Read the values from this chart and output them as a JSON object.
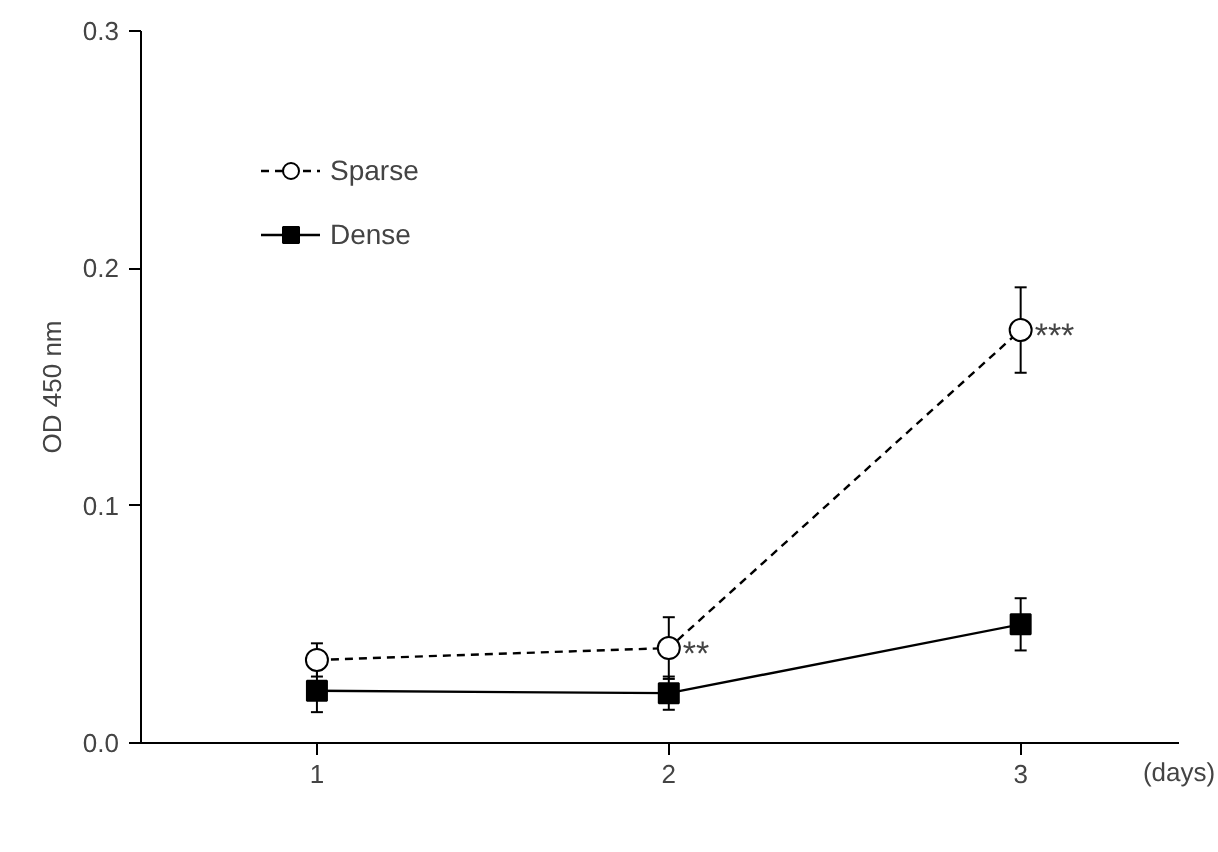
{
  "chart_data": {
    "type": "line",
    "xlabel": "(days)",
    "ylabel": "OD 450 nm",
    "x": [
      1,
      2,
      3
    ],
    "xlim": [
      0.5,
      3.45
    ],
    "xticks": [
      1,
      2,
      3
    ],
    "ylim": [
      0,
      0.3
    ],
    "yticks": [
      {
        "value": 0,
        "label": "0.0"
      },
      0.1,
      0.2,
      0.3
    ],
    "grid": false,
    "legend": "top left",
    "series": [
      {
        "name": "Sparse",
        "color": "#000000",
        "values": [
          0.035,
          0.04,
          0.174
        ],
        "errors": [
          0.007,
          0.013,
          0.018
        ],
        "marker": "circle",
        "line_style": "dashed"
      },
      {
        "name": "Dense",
        "color": "#000000",
        "values": [
          0.022,
          0.021,
          0.05
        ],
        "errors": [
          0.009,
          0.007,
          0.011
        ],
        "marker": "square",
        "line_style": "solid"
      }
    ],
    "annotations": [
      {
        "text": "**",
        "x": 2,
        "y": 0.04
      },
      {
        "text": "***",
        "x": 3,
        "y": 0.174
      }
    ]
  }
}
